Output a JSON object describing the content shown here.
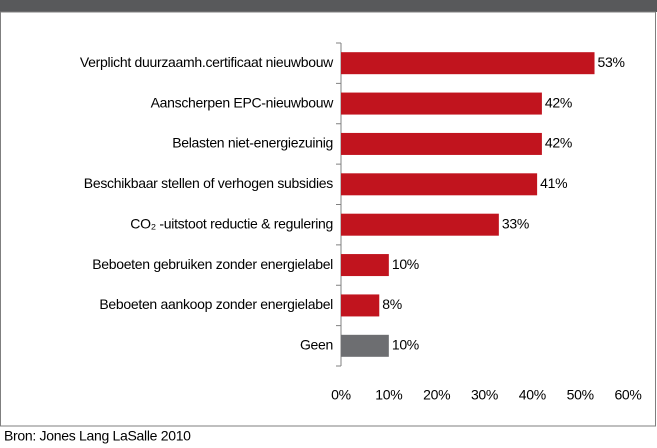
{
  "chart_data": {
    "type": "bar",
    "orientation": "horizontal",
    "categories": [
      "Verplicht duurzaamh.certificaat nieuwbouw",
      "Aanscherpen EPC-nieuwbouw",
      "Belasten niet-energiezuinig",
      "Beschikbaar stellen of verhogen subsidies",
      "CO₂ -uitstoot reductie & regulering",
      "Beboeten gebruiken zonder energielabel",
      "Beboeten aankoop zonder energielabel",
      "Geen"
    ],
    "values": [
      53,
      42,
      42,
      41,
      33,
      10,
      8,
      10
    ],
    "value_labels": [
      "53%",
      "42%",
      "42%",
      "41%",
      "33%",
      "10%",
      "8%",
      "10%"
    ],
    "colors": [
      "#c1141e",
      "#c1141e",
      "#c1141e",
      "#c1141e",
      "#c1141e",
      "#c1141e",
      "#c1141e",
      "#6d6e71"
    ],
    "xlim": [
      0,
      60
    ],
    "xticks": [
      {
        "value": 0,
        "label": "0%"
      },
      {
        "value": 10,
        "label": "10%"
      },
      {
        "value": 20,
        "label": "20%"
      },
      {
        "value": 30,
        "label": "30%"
      },
      {
        "value": 40,
        "label": "40%"
      },
      {
        "value": 50,
        "label": "50%"
      },
      {
        "value": 60,
        "label": "60%"
      }
    ],
    "source": "Bron: Jones Lang LaSalle 2010"
  }
}
